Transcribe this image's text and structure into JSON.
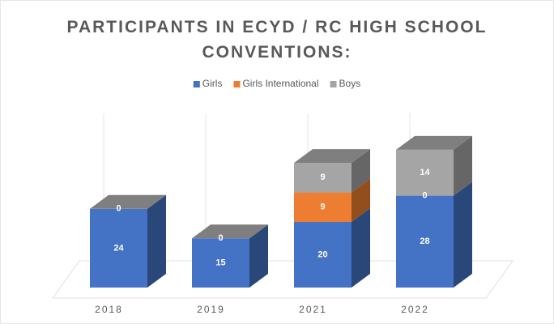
{
  "chart_data": {
    "type": "bar3d-stacked",
    "title": "PARTICIPANTS IN ECYD / RC HIGH SCHOOL CONVENTIONS:",
    "categories": [
      "2018",
      "2019",
      "2021",
      "2022"
    ],
    "series": [
      {
        "name": "Girls",
        "color": "#4472c4",
        "values": [
          24,
          15,
          20,
          28
        ]
      },
      {
        "name": "Girls International",
        "color": "#ed7d31",
        "values": [
          0,
          0,
          9,
          0
        ]
      },
      {
        "name": "Boys",
        "color": "#a5a5a5",
        "values": [
          null,
          null,
          9,
          14
        ]
      }
    ],
    "legend": "top"
  }
}
